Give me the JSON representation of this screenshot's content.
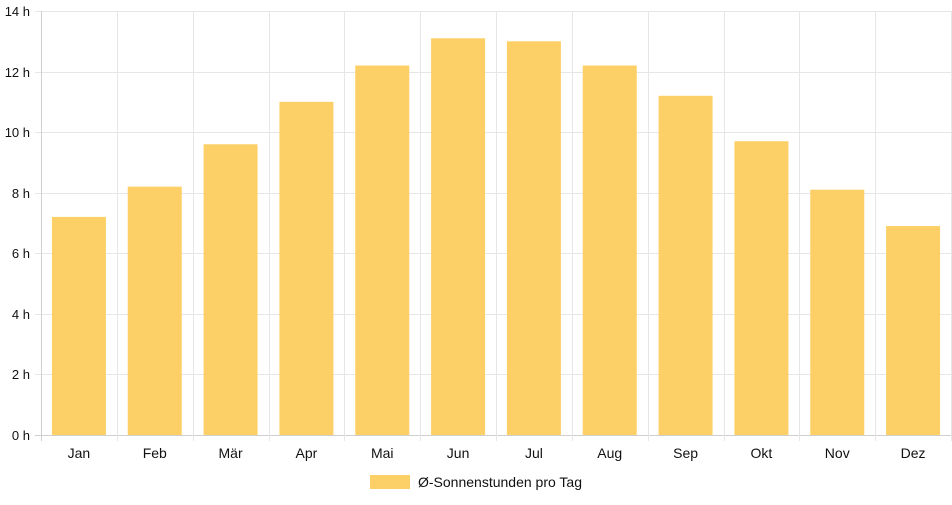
{
  "chart_data": {
    "type": "bar",
    "title": "",
    "xlabel": "",
    "ylabel": "",
    "categories": [
      "Jan",
      "Feb",
      "Mär",
      "Apr",
      "Mai",
      "Jun",
      "Jul",
      "Aug",
      "Sep",
      "Okt",
      "Nov",
      "Dez"
    ],
    "series": [
      {
        "name": "Ø-Sonnenstunden pro Tag",
        "values": [
          7.2,
          8.2,
          9.6,
          11.0,
          12.2,
          13.1,
          13.0,
          12.2,
          11.2,
          9.7,
          8.1,
          6.9
        ],
        "color": "#fdd067"
      }
    ],
    "ylim": [
      0,
      14
    ],
    "yticks": [
      0,
      2,
      4,
      6,
      8,
      10,
      12,
      14
    ],
    "y_tick_suffix": " h",
    "grid": true,
    "legend_position": "bottom",
    "grid_color": "#e6e6e6",
    "text_color": "#111111"
  }
}
